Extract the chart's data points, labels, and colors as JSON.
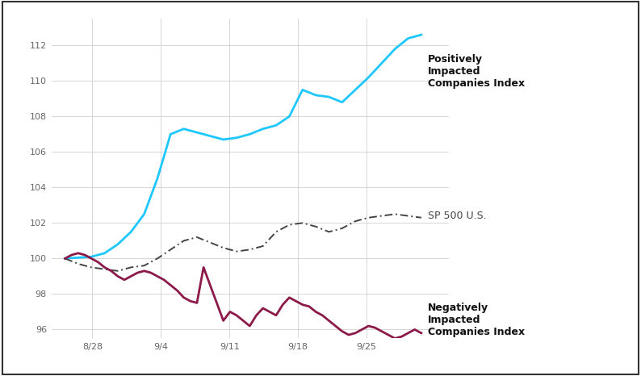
{
  "x_labels": [
    "8/28",
    "9/4",
    "9/11",
    "9/18",
    "9/25"
  ],
  "x_ticks_pos": [
    2,
    7,
    12,
    17,
    22
  ],
  "positive_index": [
    100.0,
    100.05,
    100.1,
    100.3,
    100.8,
    101.5,
    102.5,
    104.5,
    107.0,
    107.3,
    107.1,
    106.9,
    106.7,
    106.8,
    107.0,
    107.3,
    107.5,
    108.0,
    109.5,
    109.2,
    109.1,
    108.8,
    109.5,
    110.2,
    111.0,
    111.8,
    112.4,
    112.6
  ],
  "sp500": [
    100.0,
    99.7,
    99.5,
    99.4,
    99.3,
    99.5,
    99.6,
    100.0,
    100.5,
    101.0,
    101.2,
    100.9,
    100.6,
    100.4,
    100.5,
    100.7,
    101.5,
    101.9,
    102.0,
    101.8,
    101.5,
    101.7,
    102.1,
    102.3,
    102.4,
    102.5,
    102.4,
    102.3
  ],
  "negative_index": [
    100.0,
    100.2,
    100.3,
    100.2,
    100.0,
    99.8,
    99.5,
    99.3,
    99.0,
    98.8,
    99.0,
    99.2,
    99.3,
    99.2,
    99.0,
    98.8,
    98.5,
    98.2,
    97.8,
    97.6,
    97.5,
    99.5,
    98.5,
    97.5,
    96.5,
    97.0,
    96.8,
    96.5,
    96.2,
    96.8,
    97.2,
    97.0,
    96.8,
    97.4,
    97.8,
    97.6,
    97.4,
    97.3,
    97.0,
    96.8,
    96.5,
    96.2,
    95.9,
    95.7,
    95.8,
    96.0,
    96.2,
    96.1,
    95.9,
    95.7,
    95.5,
    95.6,
    95.8,
    96.0,
    95.8
  ],
  "positive_color": "#1EC8FF",
  "sp500_color": "#444444",
  "negative_color": "#8B1A4A",
  "ylim": [
    95.5,
    113.5
  ],
  "yticks": [
    96,
    98,
    100,
    102,
    104,
    106,
    108,
    110,
    112
  ],
  "xlim": [
    -1,
    28
  ],
  "background_color": "#ffffff",
  "grid_color": "#d0d0d0",
  "label_positive": "Positively\nImpacted\nCompanies Index",
  "label_sp500": "SP 500 U.S.",
  "label_negative": "Negatively\nImpacted\nCompanies Index",
  "border_color": "#333333"
}
